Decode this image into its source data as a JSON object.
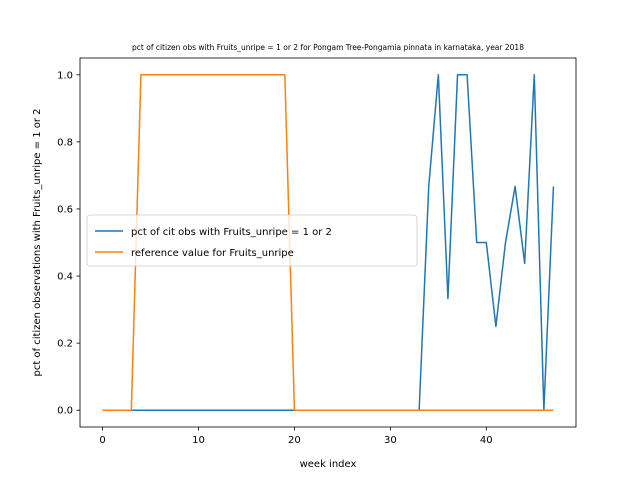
{
  "chart_data": {
    "type": "line",
    "title": "pct of citizen obs with Fruits_unripe = 1 or 2 for Pongam Tree-Pongamia pinnata in karnataka, year 2018",
    "xlabel": "week index",
    "ylabel": "pct of citizen observations with Fruits_unripe = 1 or 2",
    "xlim": [
      -2.35,
      49.35
    ],
    "ylim": [
      -0.05,
      1.05
    ],
    "xticks": [
      0,
      10,
      20,
      30,
      40
    ],
    "yticks": [
      0.0,
      0.2,
      0.4,
      0.6,
      0.8,
      1.0
    ],
    "xtick_labels": [
      "0",
      "10",
      "20",
      "30",
      "40"
    ],
    "ytick_labels": [
      "0.0",
      "0.2",
      "0.4",
      "0.6",
      "0.8",
      "1.0"
    ],
    "grid": false,
    "legend_position": "center-left",
    "x": [
      0,
      1,
      2,
      3,
      4,
      5,
      6,
      7,
      8,
      9,
      10,
      11,
      12,
      13,
      14,
      15,
      16,
      17,
      18,
      19,
      20,
      21,
      22,
      23,
      24,
      25,
      26,
      27,
      28,
      29,
      30,
      31,
      32,
      33,
      34,
      35,
      36,
      37,
      38,
      39,
      40,
      41,
      42,
      43,
      44,
      45,
      46,
      47
    ],
    "series": [
      {
        "name": "pct of cit obs with Fruits_unripe = 1 or 2",
        "color": "#1f77b4",
        "values": [
          0,
          0,
          0,
          0,
          0,
          0,
          0,
          0,
          0,
          0,
          0,
          0,
          0,
          0,
          0,
          0,
          0,
          0,
          0,
          0,
          0,
          0,
          0,
          0,
          0,
          0,
          0,
          0,
          0,
          0,
          0,
          0,
          0,
          0,
          0.667,
          1.0,
          0.333,
          1.0,
          1.0,
          0.5,
          0.5,
          0.25,
          0.5,
          0.667,
          0.438,
          1.0,
          0,
          0.667
        ]
      },
      {
        "name": "reference value for Fruits_unripe",
        "color": "#ff7f0e",
        "values": [
          0,
          0,
          0,
          0,
          1,
          1,
          1,
          1,
          1,
          1,
          1,
          1,
          1,
          1,
          1,
          1,
          1,
          1,
          1,
          1,
          0,
          0,
          0,
          0,
          0,
          0,
          0,
          0,
          0,
          0,
          0,
          0,
          0,
          0,
          0,
          0,
          0,
          0,
          0,
          0,
          0,
          0,
          0,
          0,
          0,
          0,
          0,
          0
        ]
      }
    ]
  }
}
